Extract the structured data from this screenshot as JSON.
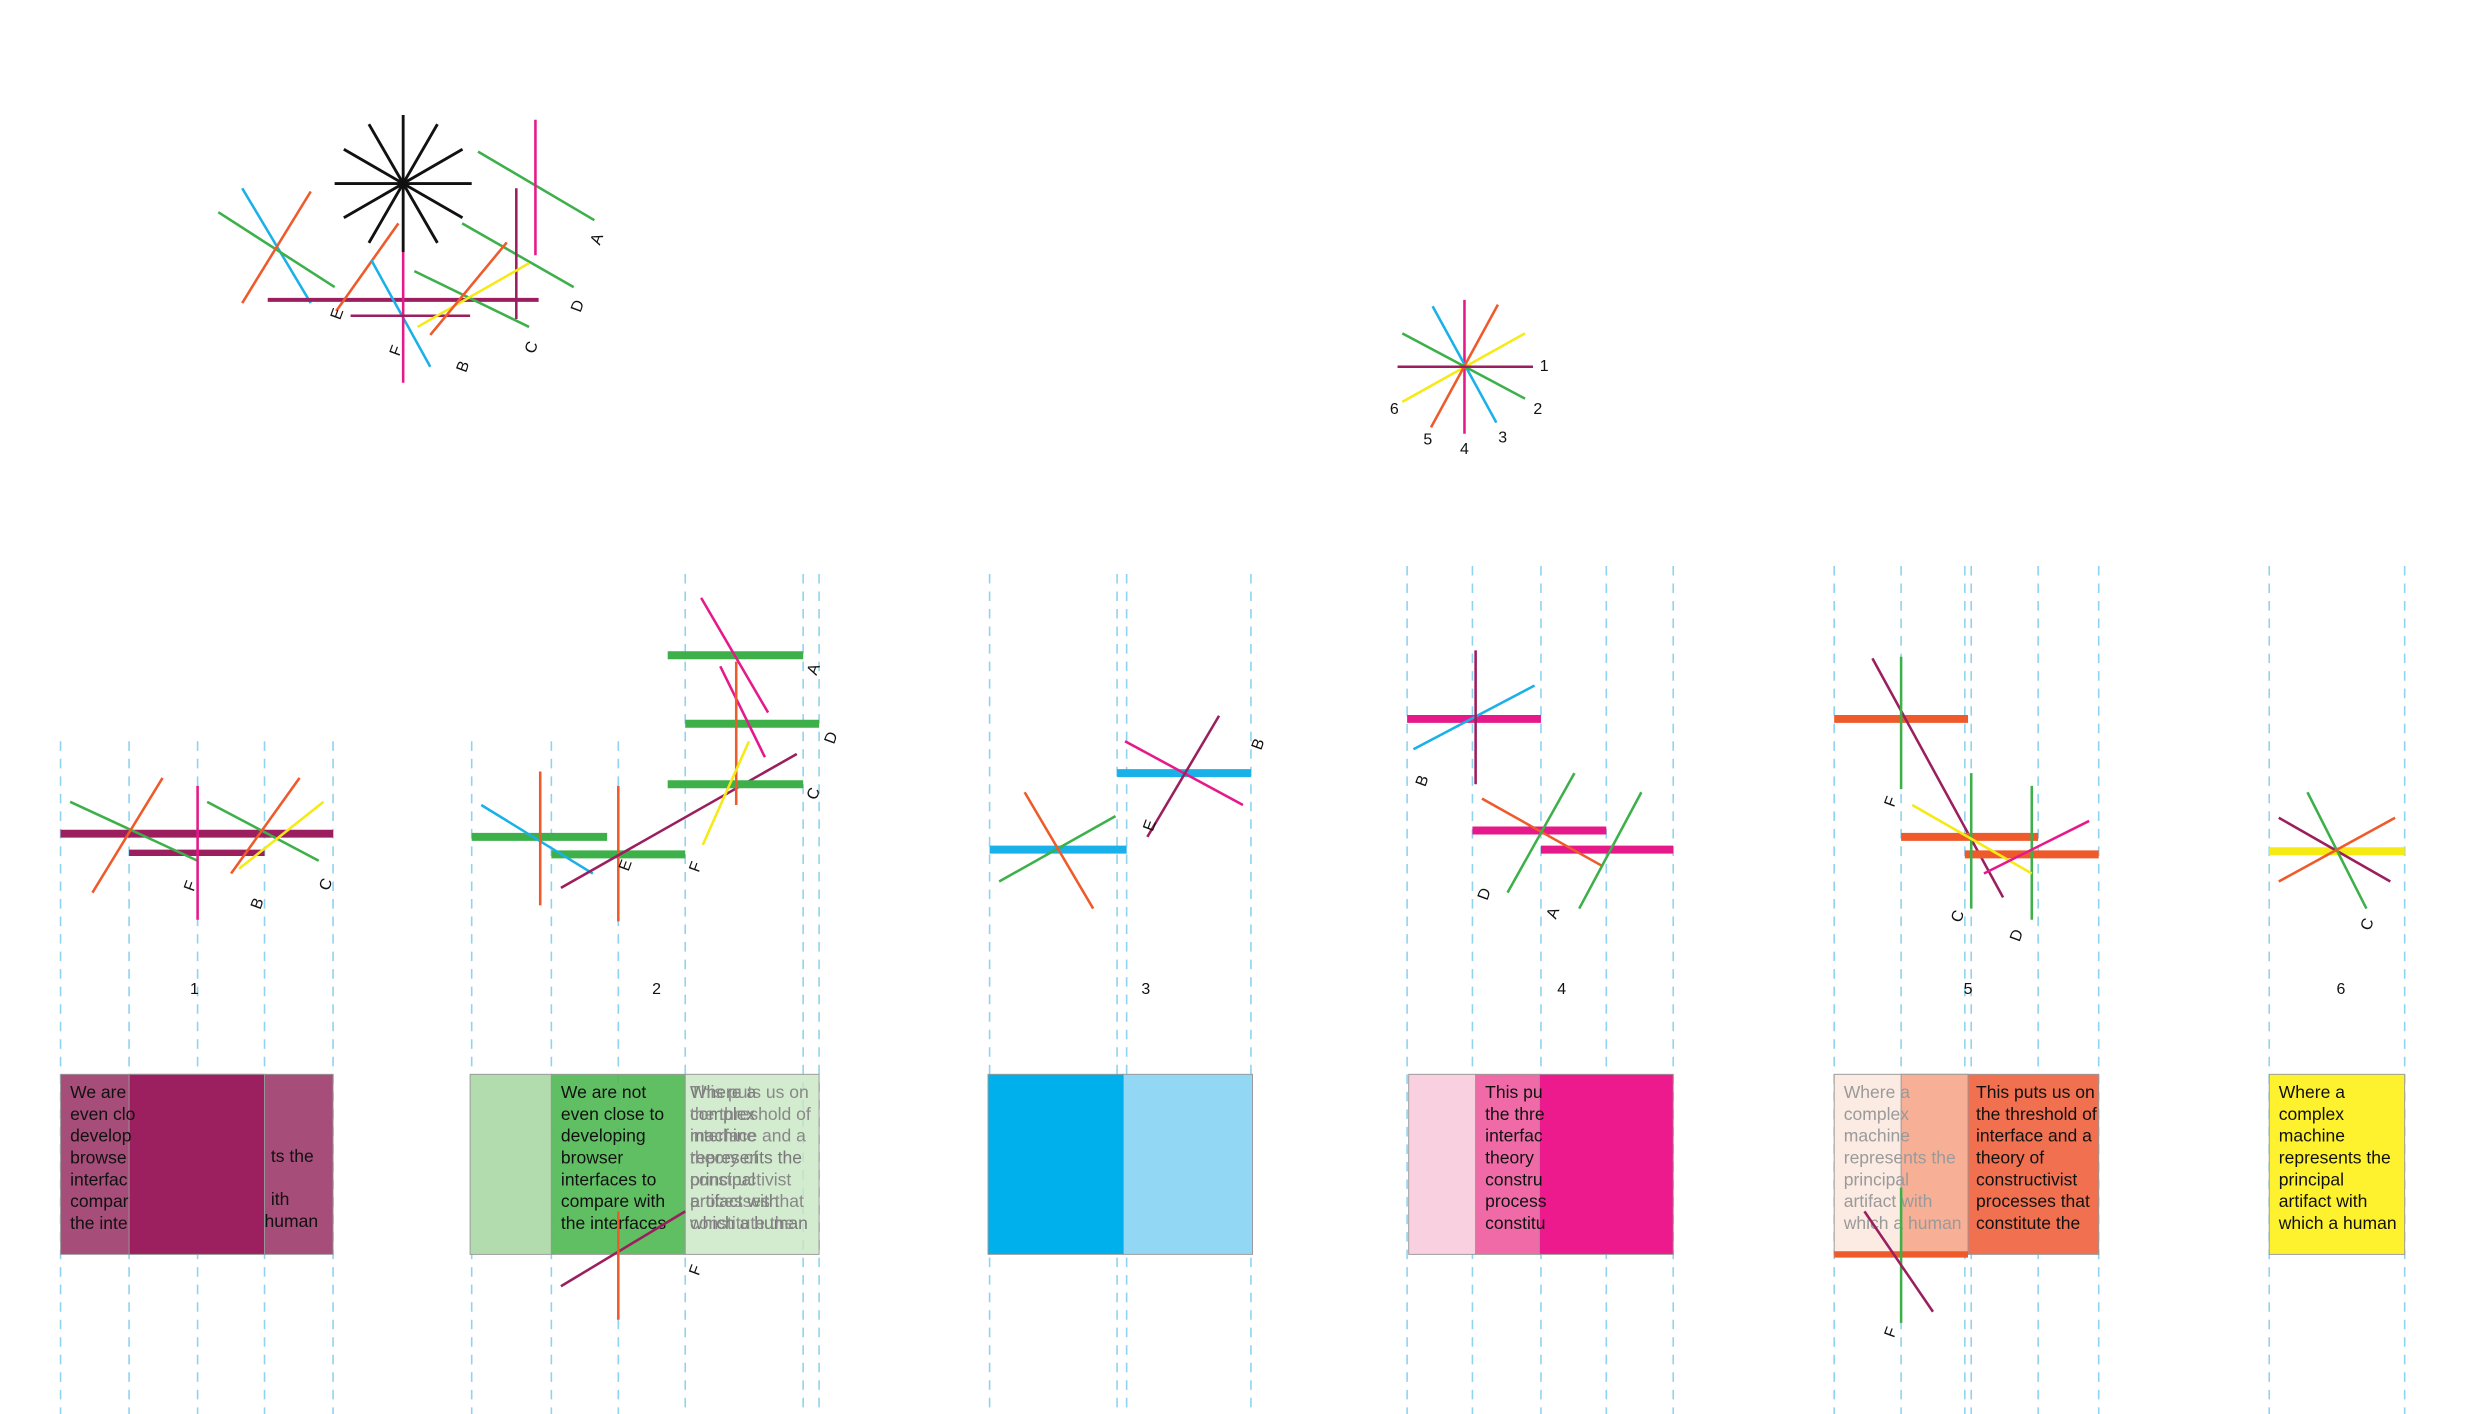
{
  "top_cluster_labels": [
    "A",
    "D",
    "C",
    "B",
    "F",
    "E"
  ],
  "legend_labels": [
    "1",
    "2",
    "3",
    "4",
    "5",
    "6"
  ],
  "panels": [
    {
      "number": "1",
      "labels": [
        "F",
        "B",
        "C"
      ],
      "texts": [
        [
          "We are",
          "even clo",
          "develop",
          "browse",
          "interfac",
          "compar",
          "the inte"
        ],
        [
          "ts the"
        ],
        [
          "ith"
        ],
        [
          "human"
        ]
      ]
    },
    {
      "number": "2",
      "labels": [
        "E",
        "F",
        "C",
        "D",
        "A",
        "F"
      ],
      "texts": [
        [
          "We are not",
          "even close to",
          "developing",
          "browser",
          "interfaces to",
          "compare with",
          "the interfaces"
        ],
        [
          "Where a",
          "complex",
          "machine",
          "represents the",
          "principal",
          "artifact with",
          "which a human"
        ],
        [
          "This puts us on",
          "the threshold of",
          "interface and a",
          "theory of",
          "constructivist",
          "processes that",
          "constitute the"
        ]
      ]
    },
    {
      "number": "3",
      "labels": [
        "E",
        "B"
      ],
      "texts": []
    },
    {
      "number": "4",
      "labels": [
        "B",
        "D",
        "A"
      ],
      "texts": [
        [
          "This pu",
          "the thre",
          "interfac",
          "theory",
          "constru",
          "process",
          "constitu"
        ]
      ]
    },
    {
      "number": "5",
      "labels": [
        "F",
        "C",
        "D",
        "F"
      ],
      "texts": [
        [
          "Where a",
          "complex",
          "machine",
          "represents the",
          "principal",
          "artifact with",
          "which a human"
        ],
        [
          "This puts us on",
          "the threshold of",
          "interface and a",
          "theory of",
          "constructivist",
          "processes that",
          "constitute the"
        ]
      ]
    },
    {
      "number": "6",
      "labels": [
        "C"
      ],
      "texts": [
        [
          "Where a",
          "complex",
          "machine",
          "represents the",
          "principal",
          "artifact with",
          "which a human"
        ]
      ]
    }
  ]
}
